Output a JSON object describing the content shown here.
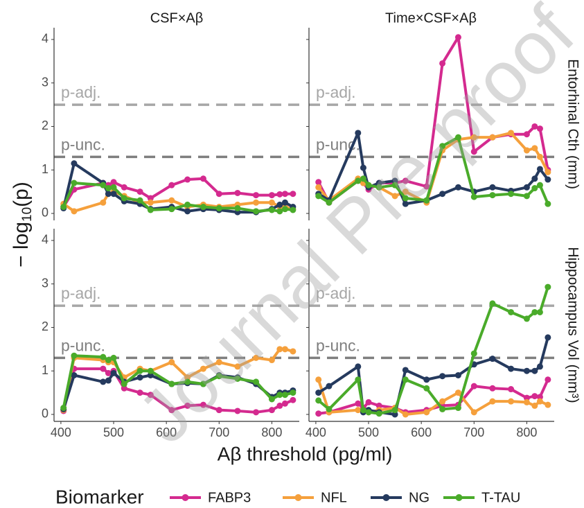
{
  "chart_data": {
    "type": "line",
    "ylabel": {
      "text": "− log",
      "subscript": "10",
      "suffix": "(p)"
    },
    "xlabel": "Aβ threshold (pg/ml)",
    "watermark": "Journal Pre-proof",
    "legend_title": "Biomarker",
    "columns": [
      "CSF×Aβ",
      "Time×CSF×Aβ"
    ],
    "rows": [
      "Entorhinal Cth (mm)",
      "Hippocampus Vol (mm³)"
    ],
    "reference_lines": [
      {
        "label": "p-adj.",
        "value": 2.5,
        "color": "#a6a6a6"
      },
      {
        "label": "p-unc.",
        "value": 1.3,
        "color": "#7f7f7f"
      }
    ],
    "x": [
      405,
      425,
      480,
      490,
      500,
      520,
      550,
      570,
      610,
      640,
      670,
      700,
      735,
      770,
      800,
      815,
      825,
      840
    ],
    "xlim": [
      387,
      852
    ],
    "xticks": [
      400,
      500,
      600,
      700,
      800
    ],
    "ylim": [
      -0.16,
      4.27
    ],
    "yticks": [
      0,
      1,
      2,
      3,
      4
    ],
    "series": [
      {
        "name": "FABP3",
        "color": "#d42a8f"
      },
      {
        "name": "NFL",
        "color": "#f5a03c"
      },
      {
        "name": "NG",
        "color": "#253a5e"
      },
      {
        "name": "T-TAU",
        "color": "#4aab2a"
      }
    ],
    "panels": [
      {
        "row": 0,
        "column": 0,
        "values": [
          [
            0.15,
            0.55,
            0.7,
            0.65,
            0.72,
            0.6,
            0.5,
            0.35,
            0.65,
            0.78,
            0.8,
            0.45,
            0.47,
            0.42,
            0.42,
            0.44,
            0.45,
            0.45
          ],
          [
            0.22,
            0.05,
            0.25,
            0.45,
            0.5,
            0.4,
            0.25,
            0.25,
            0.3,
            0.15,
            0.2,
            0.15,
            0.2,
            0.25,
            0.25,
            0.15,
            0.15,
            0.1
          ],
          [
            0.12,
            1.15,
            0.7,
            0.45,
            0.45,
            0.28,
            0.22,
            0.1,
            0.15,
            0.05,
            0.1,
            0.08,
            0.03,
            0.03,
            0.1,
            0.2,
            0.25,
            0.15
          ],
          [
            0.15,
            0.7,
            0.65,
            0.58,
            0.6,
            0.35,
            0.3,
            0.08,
            0.1,
            0.2,
            0.15,
            0.12,
            0.12,
            0.05,
            0.08,
            0.05,
            0.1,
            0.08
          ]
        ]
      },
      {
        "row": 0,
        "column": 1,
        "values": [
          [
            0.72,
            0.25,
            0.75,
            0.7,
            0.55,
            0.7,
            0.7,
            0.75,
            0.62,
            3.45,
            4.05,
            1.42,
            1.75,
            1.82,
            1.82,
            2.0,
            1.95,
            1.0
          ],
          [
            0.6,
            0.3,
            0.8,
            0.7,
            0.65,
            0.6,
            0.4,
            0.5,
            0.25,
            1.45,
            1.7,
            1.75,
            1.75,
            1.85,
            1.45,
            1.5,
            1.3,
            0.95
          ],
          [
            0.45,
            0.3,
            1.85,
            1.05,
            0.6,
            0.7,
            0.75,
            0.22,
            0.3,
            0.45,
            0.6,
            0.5,
            0.6,
            0.52,
            0.6,
            0.8,
            1.02,
            0.78
          ],
          [
            0.4,
            0.25,
            0.75,
            0.8,
            0.65,
            0.6,
            0.65,
            0.35,
            0.3,
            1.55,
            1.75,
            0.38,
            0.42,
            0.45,
            0.4,
            0.58,
            0.65,
            0.22
          ]
        ]
      },
      {
        "row": 1,
        "column": 0,
        "values": [
          [
            0.08,
            1.05,
            1.05,
            0.95,
            1.0,
            0.6,
            0.5,
            0.45,
            0.1,
            0.2,
            0.22,
            0.1,
            0.08,
            0.05,
            0.1,
            0.2,
            0.25,
            0.33
          ],
          [
            0.1,
            1.3,
            1.25,
            1.2,
            1.2,
            0.85,
            1.05,
            1.0,
            1.2,
            0.85,
            1.05,
            1.2,
            1.1,
            1.3,
            1.25,
            1.5,
            1.5,
            1.45
          ],
          [
            0.12,
            0.9,
            0.75,
            0.78,
            0.95,
            0.75,
            0.85,
            0.9,
            0.7,
            0.72,
            0.7,
            0.9,
            0.85,
            0.7,
            0.4,
            0.5,
            0.5,
            0.55
          ],
          [
            0.15,
            1.35,
            1.32,
            1.25,
            1.3,
            0.7,
            1.0,
            1.0,
            0.7,
            0.75,
            0.7,
            0.88,
            0.82,
            0.75,
            0.35,
            0.45,
            0.45,
            0.5
          ]
        ]
      },
      {
        "row": 1,
        "column": 1,
        "values": [
          [
            0.02,
            0.05,
            0.25,
            0.15,
            0.28,
            0.2,
            0.15,
            0.05,
            0.1,
            0.2,
            0.22,
            0.65,
            0.6,
            0.58,
            0.38,
            0.42,
            0.4,
            0.8
          ],
          [
            0.8,
            0.05,
            0.1,
            0.08,
            0.05,
            0.1,
            0.15,
            0.0,
            0.05,
            0.3,
            0.5,
            0.05,
            0.3,
            0.3,
            0.28,
            0.2,
            0.3,
            0.22
          ],
          [
            0.5,
            0.65,
            1.1,
            0.05,
            0.1,
            0.05,
            0.0,
            1.02,
            0.8,
            0.88,
            0.9,
            1.15,
            1.28,
            1.05,
            1.0,
            1.0,
            1.1,
            1.77
          ],
          [
            0.32,
            0.12,
            0.8,
            0.1,
            0.05,
            0.02,
            0.1,
            0.8,
            0.6,
            0.12,
            0.15,
            1.4,
            2.55,
            2.35,
            2.2,
            2.35,
            2.35,
            2.93
          ]
        ]
      }
    ]
  }
}
